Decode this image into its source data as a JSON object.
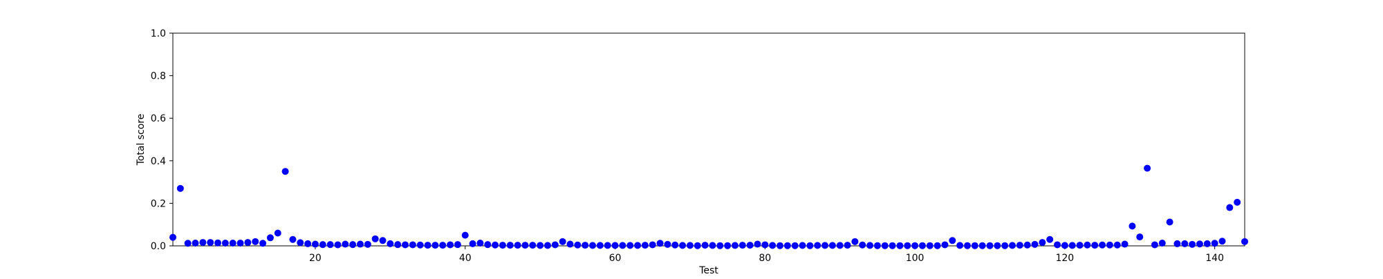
{
  "chart_data": {
    "type": "scatter",
    "title": "",
    "xlabel": "Test",
    "ylabel": "Total score",
    "xlim": [
      1,
      144
    ],
    "ylim": [
      0,
      1.0
    ],
    "xticks": [
      20,
      40,
      60,
      80,
      100,
      120,
      140
    ],
    "yticks": [
      0.0,
      0.2,
      0.4,
      0.6,
      0.8,
      1.0
    ],
    "xtick_labels": [
      "20",
      "40",
      "60",
      "80",
      "100",
      "120",
      "140"
    ],
    "ytick_labels": [
      "0.0",
      "0.2",
      "0.4",
      "0.6",
      "0.8",
      "1.0"
    ],
    "grid": false,
    "marker_color": "#0000ff",
    "series": [
      {
        "x": [
          1,
          2,
          3,
          4,
          5,
          6,
          7,
          8,
          9,
          10,
          11,
          12,
          13,
          14,
          15,
          16,
          17,
          18,
          19,
          20,
          21,
          22,
          23,
          24,
          25,
          26,
          27,
          28,
          29,
          30,
          31,
          32,
          33,
          34,
          35,
          36,
          37,
          38,
          39,
          40,
          41,
          42,
          43,
          44,
          45,
          46,
          47,
          48,
          49,
          50,
          51,
          52,
          53,
          54,
          55,
          56,
          57,
          58,
          59,
          60,
          61,
          62,
          63,
          64,
          65,
          66,
          67,
          68,
          69,
          70,
          71,
          72,
          73,
          74,
          75,
          76,
          77,
          78,
          79,
          80,
          81,
          82,
          83,
          84,
          85,
          86,
          87,
          88,
          89,
          90,
          91,
          92,
          93,
          94,
          95,
          96,
          97,
          98,
          99,
          100,
          101,
          102,
          103,
          104,
          105,
          106,
          107,
          108,
          109,
          110,
          111,
          112,
          113,
          114,
          115,
          116,
          117,
          118,
          119,
          120,
          121,
          122,
          123,
          124,
          125,
          126,
          127,
          128,
          129,
          130,
          131,
          132,
          133,
          134,
          135,
          136,
          137,
          138,
          139,
          140,
          141,
          142,
          143,
          144
        ],
        "y": [
          0.04,
          0.27,
          0.012,
          0.013,
          0.016,
          0.016,
          0.014,
          0.013,
          0.013,
          0.013,
          0.016,
          0.02,
          0.012,
          0.038,
          0.06,
          0.35,
          0.03,
          0.015,
          0.01,
          0.008,
          0.006,
          0.006,
          0.005,
          0.008,
          0.006,
          0.008,
          0.007,
          0.033,
          0.025,
          0.01,
          0.006,
          0.005,
          0.005,
          0.004,
          0.003,
          0.003,
          0.003,
          0.005,
          0.006,
          0.05,
          0.01,
          0.013,
          0.006,
          0.004,
          0.003,
          0.003,
          0.003,
          0.003,
          0.003,
          0.002,
          0.002,
          0.005,
          0.02,
          0.008,
          0.004,
          0.003,
          0.002,
          0.002,
          0.002,
          0.002,
          0.002,
          0.002,
          0.002,
          0.003,
          0.005,
          0.012,
          0.007,
          0.004,
          0.002,
          0.002,
          0.001,
          0.003,
          0.002,
          0.001,
          0.001,
          0.002,
          0.003,
          0.003,
          0.008,
          0.005,
          0.002,
          0.001,
          0.001,
          0.001,
          0.002,
          0.001,
          0.002,
          0.002,
          0.002,
          0.002,
          0.003,
          0.02,
          0.004,
          0.002,
          0.001,
          0.001,
          0.001,
          0.001,
          0.001,
          0.001,
          0.001,
          0.001,
          0.001,
          0.005,
          0.025,
          0.002,
          0.001,
          0.001,
          0.001,
          0.001,
          0.001,
          0.001,
          0.002,
          0.003,
          0.004,
          0.007,
          0.016,
          0.03,
          0.005,
          0.002,
          0.002,
          0.003,
          0.004,
          0.003,
          0.004,
          0.004,
          0.004,
          0.008,
          0.093,
          0.042,
          0.365,
          0.005,
          0.013,
          0.112,
          0.01,
          0.01,
          0.007,
          0.009,
          0.01,
          0.012,
          0.022,
          0.18,
          0.205,
          0.02
        ]
      }
    ]
  }
}
